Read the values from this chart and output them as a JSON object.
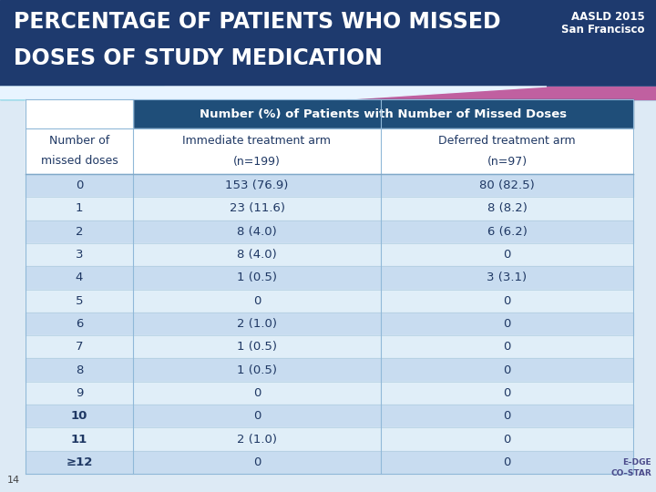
{
  "title_line1": "PERCENTAGE OF PATIENTS WHO MISSED",
  "title_line2": "DOSES OF STUDY MEDICATION",
  "title_bg_color": "#1E3A6E",
  "title_text_color": "#FFFFFF",
  "aasld_line1": "AASLD 2015",
  "aasld_line2": "San Francisco",
  "header1": "Number (%) of Patients with Number of Missed Doses",
  "header1_bg": "#1F4E79",
  "header1_text_color": "#FFFFFF",
  "col1_header_line1": "Number of",
  "col1_header_line2": "missed doses",
  "col2_header_line1": "Immediate treatment arm",
  "col2_header_line2": "(n=199)",
  "col3_header_line1": "Deferred treatment arm",
  "col3_header_line2": "(n=97)",
  "subheader_text_color": "#1F3864",
  "rows": [
    [
      "0",
      "153 (76.9)",
      "80 (82.5)"
    ],
    [
      "1",
      "23 (11.6)",
      "8 (8.2)"
    ],
    [
      "2",
      "8 (4.0)",
      "6 (6.2)"
    ],
    [
      "3",
      "8 (4.0)",
      "0"
    ],
    [
      "4",
      "1 (0.5)",
      "3 (3.1)"
    ],
    [
      "5",
      "0",
      "0"
    ],
    [
      "6",
      "2 (1.0)",
      "0"
    ],
    [
      "7",
      "1 (0.5)",
      "0"
    ],
    [
      "8",
      "1 (0.5)",
      "0"
    ],
    [
      "9",
      "0",
      "0"
    ],
    [
      "10",
      "0",
      "0"
    ],
    [
      "11",
      "2 (1.0)",
      "0"
    ],
    [
      "≥12",
      "0",
      "0"
    ]
  ],
  "bold_rows": [
    "10",
    "11",
    "≥12"
  ],
  "row_color_even": "#C8DCF0",
  "row_color_odd": "#E0EEF8",
  "row_text_color": "#1F3864",
  "footer_text": "14",
  "slide_bg_color": "#DDEAF5",
  "table_bg_color": "#FFFFFF",
  "accent_teal": "#00B0C8",
  "accent_purple": "#7030A0",
  "accent_green": "#70AD47"
}
